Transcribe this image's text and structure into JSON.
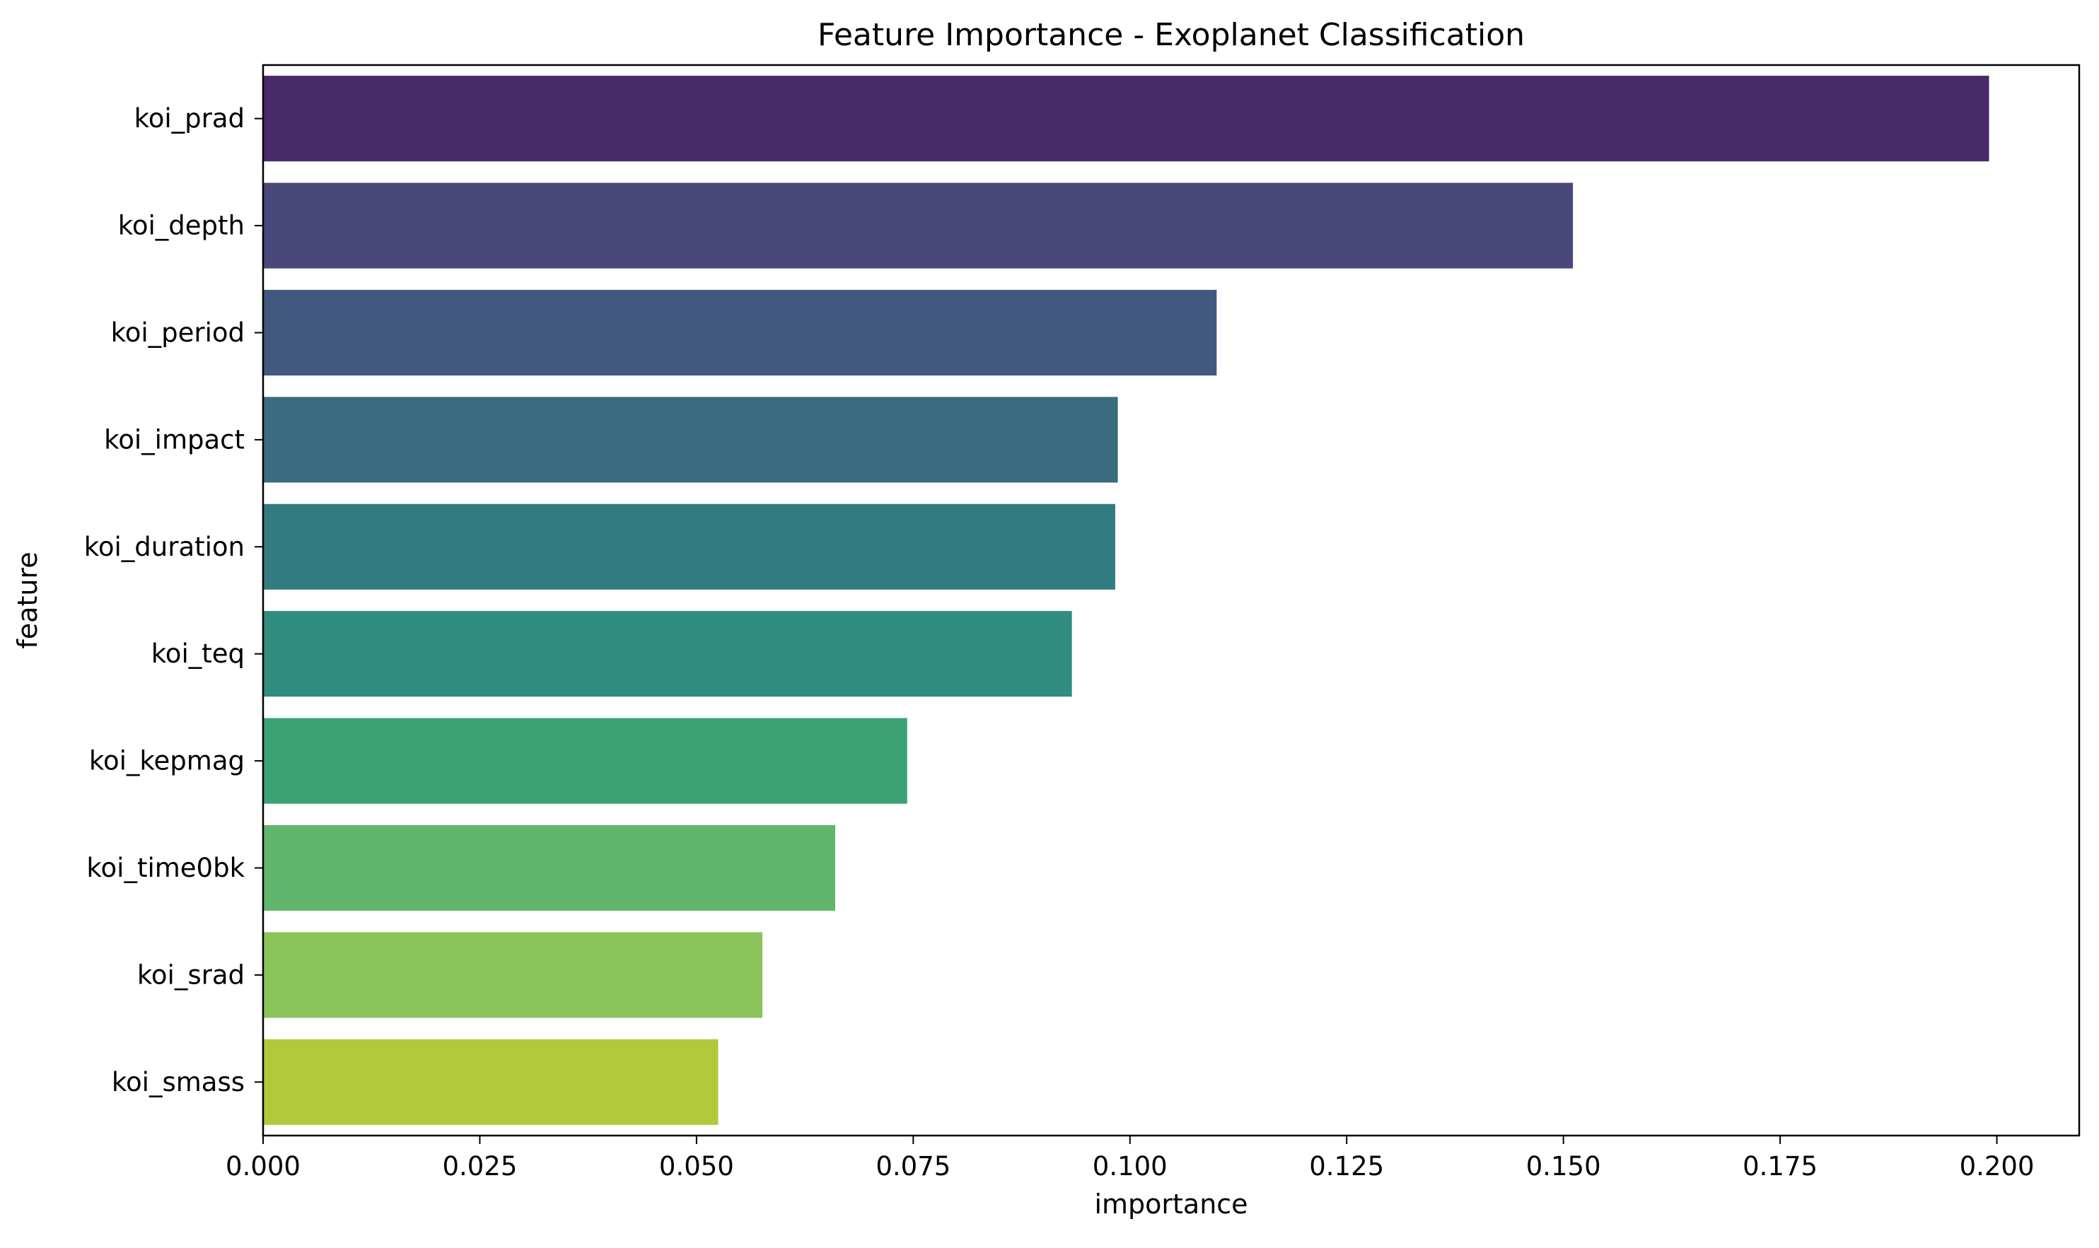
{
  "chart_data": {
    "type": "bar",
    "orientation": "horizontal",
    "title": "Feature Importance - Exoplanet Classification",
    "xlabel": "importance",
    "ylabel": "feature",
    "xlim": [
      0,
      0.2095
    ],
    "x_ticks": [
      0.0,
      0.025,
      0.05,
      0.075,
      0.1,
      0.125,
      0.15,
      0.175,
      0.2
    ],
    "x_tick_labels": [
      "0.000",
      "0.025",
      "0.050",
      "0.075",
      "0.100",
      "0.125",
      "0.150",
      "0.175",
      "0.200"
    ],
    "grid": false,
    "legend": "none",
    "categories": [
      "koi_prad",
      "koi_depth",
      "koi_period",
      "koi_impact",
      "koi_duration",
      "koi_teq",
      "koi_kepmag",
      "koi_time0bk",
      "koi_srad",
      "koi_smass"
    ],
    "values": [
      0.1991,
      0.1511,
      0.11,
      0.0986,
      0.0983,
      0.0933,
      0.0743,
      0.066,
      0.0576,
      0.0525
    ],
    "colors": [
      "#482a6a",
      "#4a487b",
      "#41597f",
      "#3a6c80",
      "#327c81",
      "#2f8c7f",
      "#3ca276",
      "#61b66e",
      "#8bc45a",
      "#b2c93b"
    ]
  }
}
